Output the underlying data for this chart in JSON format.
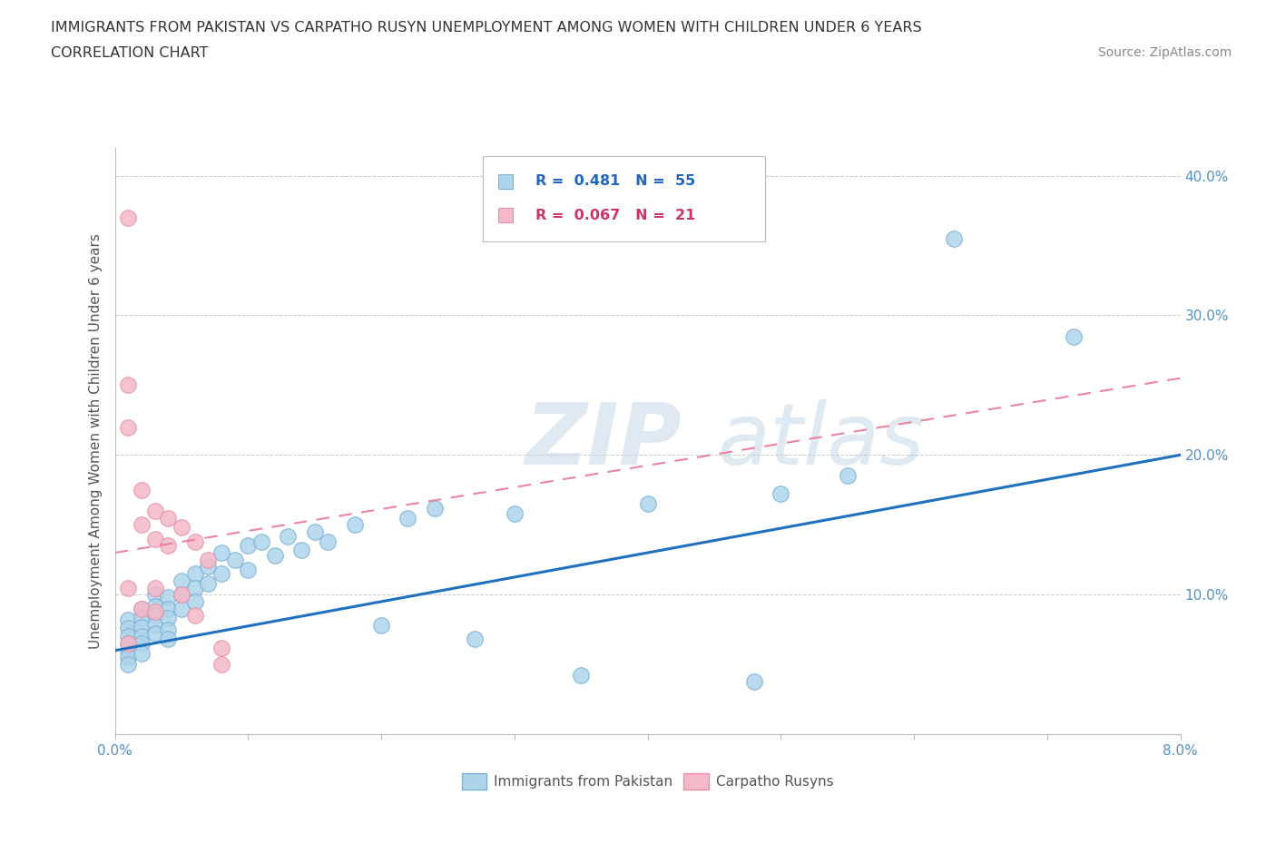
{
  "title_line1": "IMMIGRANTS FROM PAKISTAN VS CARPATHO RUSYN UNEMPLOYMENT AMONG WOMEN WITH CHILDREN UNDER 6 YEARS",
  "title_line2": "CORRELATION CHART",
  "source_text": "Source: ZipAtlas.com",
  "ylabel": "Unemployment Among Women with Children Under 6 years",
  "xlim": [
    0.0,
    0.08
  ],
  "ylim": [
    0.0,
    0.42
  ],
  "blue_color": "#aed4ea",
  "pink_color": "#f4b8c8",
  "blue_edge": "#7ab0d4",
  "pink_edge": "#e890a8",
  "trend_blue": "#2070c0",
  "trend_pink": "#e87898",
  "legend_label_blue": "Immigrants from Pakistan",
  "legend_label_pink": "Carpatho Rusyns",
  "watermark_zip": "ZIP",
  "watermark_atlas": "atlas",
  "blue_x": [
    0.001,
    0.001,
    0.001,
    0.001,
    0.001,
    0.001,
    0.001,
    0.002,
    0.002,
    0.002,
    0.002,
    0.002,
    0.002,
    0.003,
    0.003,
    0.003,
    0.003,
    0.003,
    0.004,
    0.004,
    0.004,
    0.004,
    0.004,
    0.005,
    0.005,
    0.005,
    0.006,
    0.006,
    0.006,
    0.007,
    0.007,
    0.008,
    0.008,
    0.009,
    0.01,
    0.01,
    0.011,
    0.012,
    0.013,
    0.014,
    0.015,
    0.016,
    0.018,
    0.02,
    0.022,
    0.024,
    0.027,
    0.03,
    0.035,
    0.04,
    0.048,
    0.05,
    0.055,
    0.063,
    0.072
  ],
  "blue_y": [
    0.082,
    0.076,
    0.07,
    0.065,
    0.06,
    0.055,
    0.05,
    0.09,
    0.083,
    0.077,
    0.07,
    0.065,
    0.058,
    0.1,
    0.092,
    0.085,
    0.078,
    0.072,
    0.098,
    0.09,
    0.083,
    0.075,
    0.068,
    0.11,
    0.1,
    0.09,
    0.115,
    0.105,
    0.095,
    0.12,
    0.108,
    0.13,
    0.115,
    0.125,
    0.135,
    0.118,
    0.138,
    0.128,
    0.142,
    0.132,
    0.145,
    0.138,
    0.15,
    0.078,
    0.155,
    0.162,
    0.068,
    0.158,
    0.042,
    0.165,
    0.038,
    0.172,
    0.185,
    0.355,
    0.285
  ],
  "pink_x": [
    0.001,
    0.001,
    0.001,
    0.001,
    0.001,
    0.002,
    0.002,
    0.002,
    0.003,
    0.003,
    0.003,
    0.003,
    0.004,
    0.004,
    0.005,
    0.005,
    0.006,
    0.006,
    0.007,
    0.008,
    0.008
  ],
  "pink_y": [
    0.37,
    0.25,
    0.22,
    0.105,
    0.065,
    0.175,
    0.15,
    0.09,
    0.16,
    0.14,
    0.105,
    0.088,
    0.155,
    0.135,
    0.148,
    0.1,
    0.138,
    0.085,
    0.125,
    0.062,
    0.05
  ],
  "blue_trend_x0": 0.0,
  "blue_trend_y0": 0.06,
  "blue_trend_x1": 0.08,
  "blue_trend_y1": 0.2,
  "pink_trend_x0": 0.0,
  "pink_trend_y0": 0.13,
  "pink_trend_x1": 0.08,
  "pink_trend_y1": 0.255
}
